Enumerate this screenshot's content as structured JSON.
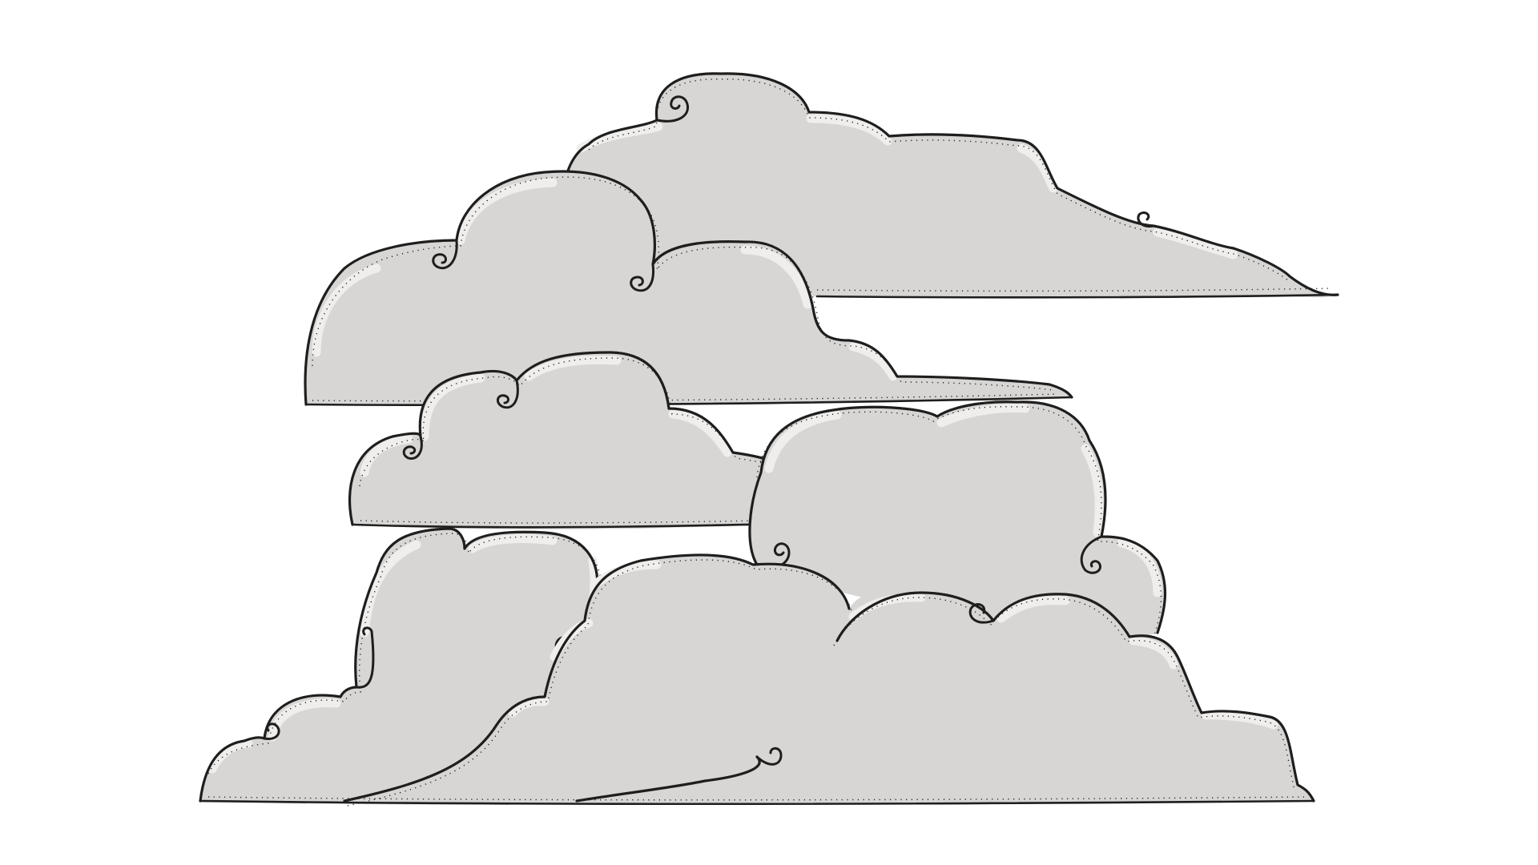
{
  "scene": {
    "background_color": "#ffffff",
    "cloud_fill_color": "#d8d6d4",
    "cloud_highlight_color": "#efeeec",
    "outline_color": "#1e1e1e",
    "cloud_count": 6
  }
}
